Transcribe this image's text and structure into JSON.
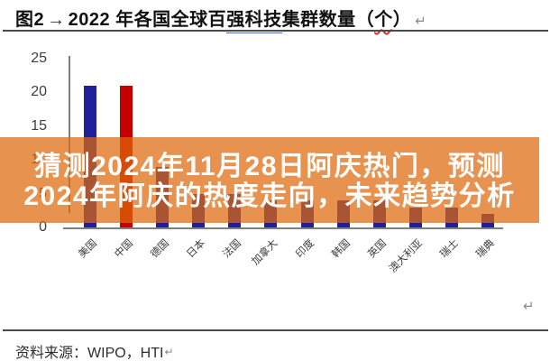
{
  "document": {
    "title": {
      "figure_label": "图2",
      "tab_mark": "→",
      "text_before": "2022 年各国全球百",
      "underlined_blue": "强科技",
      "text_middle": "集群数量（",
      "flagged_word": "个",
      "text_after": "）"
    },
    "source": {
      "label": "资料来源：",
      "value": "WIPO，HTI"
    },
    "marks": {
      "return_mark": "↵"
    }
  },
  "overlay": {
    "line1": "猜测2024年11月28日阿庆热门，预测",
    "line2": "2024年阿庆的热度走向，未来趋势分析",
    "background": "#E8954F",
    "text_color": "#FFFFFF"
  },
  "chart_data": {
    "type": "bar",
    "title": "2022 年各国全球百强科技集群数量（个）",
    "categories": [
      "美国",
      "中国",
      "德国",
      "日本",
      "法国",
      "加拿大",
      "印度",
      "韩国",
      "英国",
      "澳大利亚",
      "瑞士",
      "瑞典"
    ],
    "values": [
      21,
      21,
      9,
      5,
      5,
      4,
      4,
      4,
      4,
      3,
      3,
      2
    ],
    "colors": [
      "#20209A",
      "#C40000",
      "#20209A",
      "#20209A",
      "#20209A",
      "#20209A",
      "#20209A",
      "#20209A",
      "#20209A",
      "#20209A",
      "#20209A",
      "#20209A"
    ],
    "yticks": [
      25,
      20,
      15,
      10,
      5,
      0
    ],
    "ylim": [
      0,
      25
    ],
    "grid": false,
    "legend_position": "none",
    "axis_color": "#808080",
    "xlabel": "",
    "ylabel": ""
  }
}
